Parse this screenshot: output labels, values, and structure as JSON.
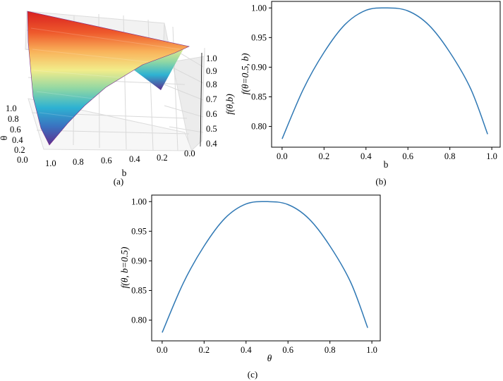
{
  "figure": {
    "captions": {
      "a": "(a)",
      "b": "(b)",
      "c": "(c)"
    }
  },
  "colors": {
    "line": "#2f78b4",
    "frame": "#000000",
    "surface_colormap": [
      "#5e2f8f",
      "#3a72c0",
      "#2eb2d2",
      "#8fd7a4",
      "#f2ec8a",
      "#f9b25a",
      "#ee5a2c",
      "#d81f1f"
    ]
  },
  "chart_data": [
    {
      "panel": "a",
      "type": "surface",
      "xlabel": "b",
      "ylabel": "θ",
      "zlabel": "f(θ,b)",
      "x_ticks": [
        "1.0",
        "0.8",
        "0.6",
        "0.4",
        "0.2",
        "0.0"
      ],
      "y_ticks": [
        "1.0",
        "0.8",
        "0.6",
        "0.4",
        "0.2",
        "0.0"
      ],
      "z_ticks": [
        "1.0",
        "0.9",
        "0.8",
        "0.7",
        "0.6",
        "0.5",
        "0.4"
      ],
      "zlim": [
        0.4,
        1.0
      ],
      "colormap": "spectral (low = purple, high = red)",
      "grid": true
    },
    {
      "panel": "b",
      "type": "line",
      "xlabel": "b",
      "ylabel": "f(θ=0.5, b)",
      "x_ticks": [
        "0.0",
        "0.2",
        "0.4",
        "0.6",
        "0.8",
        "1.0"
      ],
      "y_ticks": [
        "0.80",
        "0.85",
        "0.90",
        "0.95",
        "1.00"
      ],
      "xlim": [
        -0.05,
        1.04
      ],
      "ylim": [
        0.765,
        1.011
      ],
      "x": [
        0.0,
        0.1,
        0.2,
        0.3,
        0.4,
        0.5,
        0.6,
        0.7,
        0.8,
        0.9,
        0.98
      ],
      "y": [
        0.779,
        0.862,
        0.925,
        0.972,
        0.996,
        1.0,
        0.995,
        0.971,
        0.925,
        0.863,
        0.787
      ]
    },
    {
      "panel": "c",
      "type": "line",
      "xlabel": "θ",
      "ylabel": "f(θ, b=0.5)",
      "x_ticks": [
        "0.0",
        "0.2",
        "0.4",
        "0.6",
        "0.8",
        "1.0"
      ],
      "y_ticks": [
        "0.80",
        "0.85",
        "0.90",
        "0.95",
        "1.00"
      ],
      "xlim": [
        -0.05,
        1.04
      ],
      "ylim": [
        0.765,
        1.011
      ],
      "x": [
        0.0,
        0.1,
        0.2,
        0.3,
        0.4,
        0.5,
        0.6,
        0.7,
        0.8,
        0.9,
        0.98
      ],
      "y": [
        0.779,
        0.862,
        0.925,
        0.972,
        0.996,
        1.0,
        0.995,
        0.971,
        0.925,
        0.863,
        0.787
      ]
    }
  ]
}
